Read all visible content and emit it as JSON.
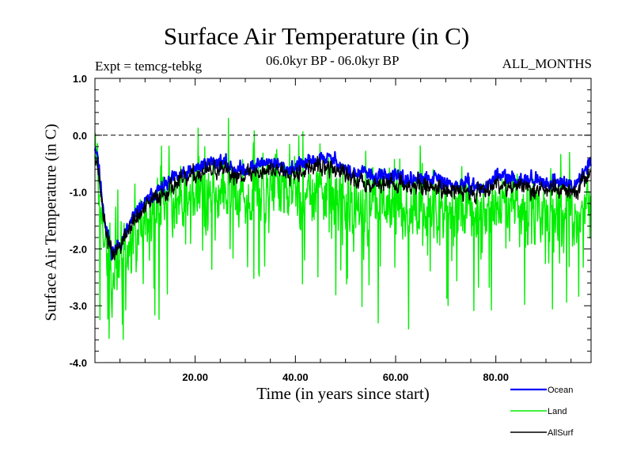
{
  "chart_data": {
    "type": "line",
    "title": "Surface Air Temperature (in C)",
    "experiment": "Expt = temcg-tebkg",
    "period": "06.0kyr BP - 06.0kyr BP",
    "months": "ALL_MONTHS",
    "xlabel": "Time (in years since start)",
    "ylabel": "Surface Air Temperature (in C)",
    "xlim": [
      0,
      99
    ],
    "ylim": [
      -4.0,
      1.0
    ],
    "xticks": [
      20,
      40,
      60,
      80
    ],
    "xtick_labels": [
      "20.00",
      "40.00",
      "60.00",
      "80.00"
    ],
    "yticks": [
      1.0,
      0.0,
      -1.0,
      -2.0,
      -3.0,
      -4.0
    ],
    "ytick_labels": [
      "1.0",
      "0.0",
      "-1.0",
      "-2.0",
      "-3.0",
      "-4.0"
    ],
    "reference_line": {
      "y": 0.0,
      "style": "dashed"
    },
    "legend_position": "bottom-right",
    "series": [
      {
        "name": "Ocean",
        "color": "#0000ff",
        "anchors": [
          [
            0,
            -0.2
          ],
          [
            0.5,
            -0.3
          ],
          [
            1,
            -0.8
          ],
          [
            2,
            -1.5
          ],
          [
            3,
            -1.95
          ],
          [
            3.5,
            -2.05
          ],
          [
            4,
            -2.0
          ],
          [
            5,
            -1.9
          ],
          [
            6,
            -1.75
          ],
          [
            7,
            -1.55
          ],
          [
            8,
            -1.4
          ],
          [
            9,
            -1.3
          ],
          [
            10,
            -1.2
          ],
          [
            11,
            -1.1
          ],
          [
            12,
            -1.0
          ],
          [
            13,
            -0.95
          ],
          [
            14,
            -0.9
          ],
          [
            16,
            -0.75
          ],
          [
            18,
            -0.7
          ],
          [
            20,
            -0.6
          ],
          [
            22,
            -0.5
          ],
          [
            24,
            -0.45
          ],
          [
            26,
            -0.5
          ],
          [
            28,
            -0.6
          ],
          [
            30,
            -0.6
          ],
          [
            32,
            -0.55
          ],
          [
            34,
            -0.45
          ],
          [
            36,
            -0.5
          ],
          [
            38,
            -0.6
          ],
          [
            40,
            -0.55
          ],
          [
            42,
            -0.5
          ],
          [
            44,
            -0.45
          ],
          [
            46,
            -0.4
          ],
          [
            48,
            -0.45
          ],
          [
            50,
            -0.6
          ],
          [
            52,
            -0.7
          ],
          [
            54,
            -0.65
          ],
          [
            56,
            -0.75
          ],
          [
            58,
            -0.7
          ],
          [
            60,
            -0.75
          ],
          [
            62,
            -0.8
          ],
          [
            64,
            -0.75
          ],
          [
            66,
            -0.8
          ],
          [
            68,
            -0.75
          ],
          [
            70,
            -0.85
          ],
          [
            72,
            -0.9
          ],
          [
            74,
            -0.85
          ],
          [
            76,
            -0.9
          ],
          [
            78,
            -0.95
          ],
          [
            80,
            -0.7
          ],
          [
            82,
            -0.75
          ],
          [
            84,
            -0.8
          ],
          [
            86,
            -0.75
          ],
          [
            88,
            -0.8
          ],
          [
            90,
            -0.85
          ],
          [
            92,
            -0.8
          ],
          [
            94,
            -0.85
          ],
          [
            96,
            -0.9
          ],
          [
            98,
            -0.6
          ],
          [
            99,
            -0.4
          ]
        ],
        "noise": 0.12,
        "seed": 11
      },
      {
        "name": "Land",
        "color": "#00ee00",
        "anchors": [
          [
            0,
            0.0
          ],
          [
            0.5,
            -0.4
          ],
          [
            1,
            -1.2
          ],
          [
            2,
            -1.9
          ],
          [
            3,
            -2.3
          ],
          [
            4,
            -2.4
          ],
          [
            5,
            -2.2
          ],
          [
            6,
            -2.0
          ],
          [
            7,
            -1.9
          ],
          [
            8,
            -1.8
          ],
          [
            10,
            -1.6
          ],
          [
            12,
            -1.4
          ],
          [
            14,
            -1.3
          ],
          [
            16,
            -1.2
          ],
          [
            18,
            -1.1
          ],
          [
            20,
            -1.0
          ],
          [
            24,
            -1.0
          ],
          [
            28,
            -1.05
          ],
          [
            32,
            -1.0
          ],
          [
            36,
            -0.95
          ],
          [
            40,
            -1.0
          ],
          [
            44,
            -0.95
          ],
          [
            48,
            -1.0
          ],
          [
            52,
            -1.2
          ],
          [
            56,
            -1.25
          ],
          [
            60,
            -1.2
          ],
          [
            64,
            -1.3
          ],
          [
            68,
            -1.25
          ],
          [
            72,
            -1.35
          ],
          [
            76,
            -1.4
          ],
          [
            80,
            -1.2
          ],
          [
            84,
            -1.25
          ],
          [
            88,
            -1.3
          ],
          [
            92,
            -1.35
          ],
          [
            96,
            -1.4
          ],
          [
            99,
            -1.0
          ]
        ],
        "noise": 0.55,
        "seed": 23
      },
      {
        "name": "AllSurf",
        "color": "#000000",
        "anchors": [
          [
            0,
            -0.3
          ],
          [
            0.5,
            -0.5
          ],
          [
            1,
            -0.9
          ],
          [
            2,
            -1.6
          ],
          [
            3,
            -2.0
          ],
          [
            3.5,
            -2.1
          ],
          [
            4,
            -2.05
          ],
          [
            5,
            -1.95
          ],
          [
            6,
            -1.8
          ],
          [
            7,
            -1.6
          ],
          [
            8,
            -1.5
          ],
          [
            10,
            -1.3
          ],
          [
            12,
            -1.1
          ],
          [
            14,
            -1.0
          ],
          [
            16,
            -0.85
          ],
          [
            18,
            -0.8
          ],
          [
            20,
            -0.7
          ],
          [
            24,
            -0.6
          ],
          [
            28,
            -0.7
          ],
          [
            32,
            -0.65
          ],
          [
            36,
            -0.6
          ],
          [
            40,
            -0.65
          ],
          [
            44,
            -0.55
          ],
          [
            48,
            -0.6
          ],
          [
            52,
            -0.8
          ],
          [
            56,
            -0.85
          ],
          [
            60,
            -0.85
          ],
          [
            64,
            -0.9
          ],
          [
            68,
            -0.9
          ],
          [
            72,
            -1.0
          ],
          [
            76,
            -1.0
          ],
          [
            80,
            -0.85
          ],
          [
            84,
            -0.9
          ],
          [
            88,
            -0.95
          ],
          [
            92,
            -0.95
          ],
          [
            96,
            -1.0
          ],
          [
            99,
            -0.6
          ]
        ],
        "noise": 0.15,
        "seed": 37
      }
    ]
  }
}
